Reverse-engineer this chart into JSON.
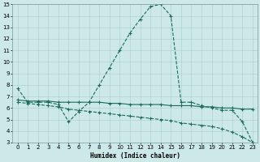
{
  "xlabel": "Humidex (Indice chaleur)",
  "bg_color": "#cce8e8",
  "grid_color": "#aacccc",
  "line_color": "#1a6b5a",
  "xlim": [
    -0.5,
    23.5
  ],
  "ylim": [
    3,
    15
  ],
  "xticks": [
    0,
    1,
    2,
    3,
    4,
    5,
    6,
    7,
    8,
    9,
    10,
    11,
    12,
    13,
    14,
    15,
    16,
    17,
    18,
    19,
    20,
    21,
    22,
    23
  ],
  "yticks": [
    3,
    4,
    5,
    6,
    7,
    8,
    9,
    10,
    11,
    12,
    13,
    14,
    15
  ],
  "curve_x": [
    0,
    1,
    2,
    3,
    4,
    5,
    6,
    7,
    8,
    9,
    10,
    11,
    12,
    13,
    14,
    15,
    16,
    17,
    18,
    19,
    20,
    21,
    22,
    23
  ],
  "curve_y": [
    7.7,
    6.5,
    6.5,
    6.5,
    6.3,
    4.8,
    5.7,
    6.5,
    8.0,
    9.5,
    11.0,
    12.5,
    13.7,
    14.8,
    15.0,
    14.0,
    6.5,
    6.5,
    6.2,
    6.0,
    5.8,
    5.8,
    4.8,
    3.0
  ],
  "flat_x": [
    0,
    1,
    2,
    3,
    4,
    5,
    6,
    7,
    8,
    9,
    10,
    11,
    12,
    13,
    14,
    15,
    16,
    17,
    18,
    19,
    20,
    21,
    22,
    23
  ],
  "flat_y": [
    6.7,
    6.6,
    6.6,
    6.6,
    6.5,
    6.5,
    6.5,
    6.5,
    6.5,
    6.4,
    6.4,
    6.3,
    6.3,
    6.3,
    6.3,
    6.2,
    6.2,
    6.2,
    6.1,
    6.1,
    6.0,
    6.0,
    5.9,
    5.9
  ],
  "decline_x": [
    0,
    1,
    2,
    3,
    4,
    5,
    6,
    7,
    8,
    9,
    10,
    11,
    12,
    13,
    14,
    15,
    16,
    17,
    18,
    19,
    20,
    21,
    22,
    23
  ],
  "decline_y": [
    6.5,
    6.4,
    6.3,
    6.2,
    6.1,
    5.9,
    5.8,
    5.7,
    5.6,
    5.5,
    5.4,
    5.3,
    5.2,
    5.1,
    5.0,
    4.9,
    4.7,
    4.6,
    4.5,
    4.4,
    4.2,
    3.9,
    3.5,
    3.0
  ]
}
